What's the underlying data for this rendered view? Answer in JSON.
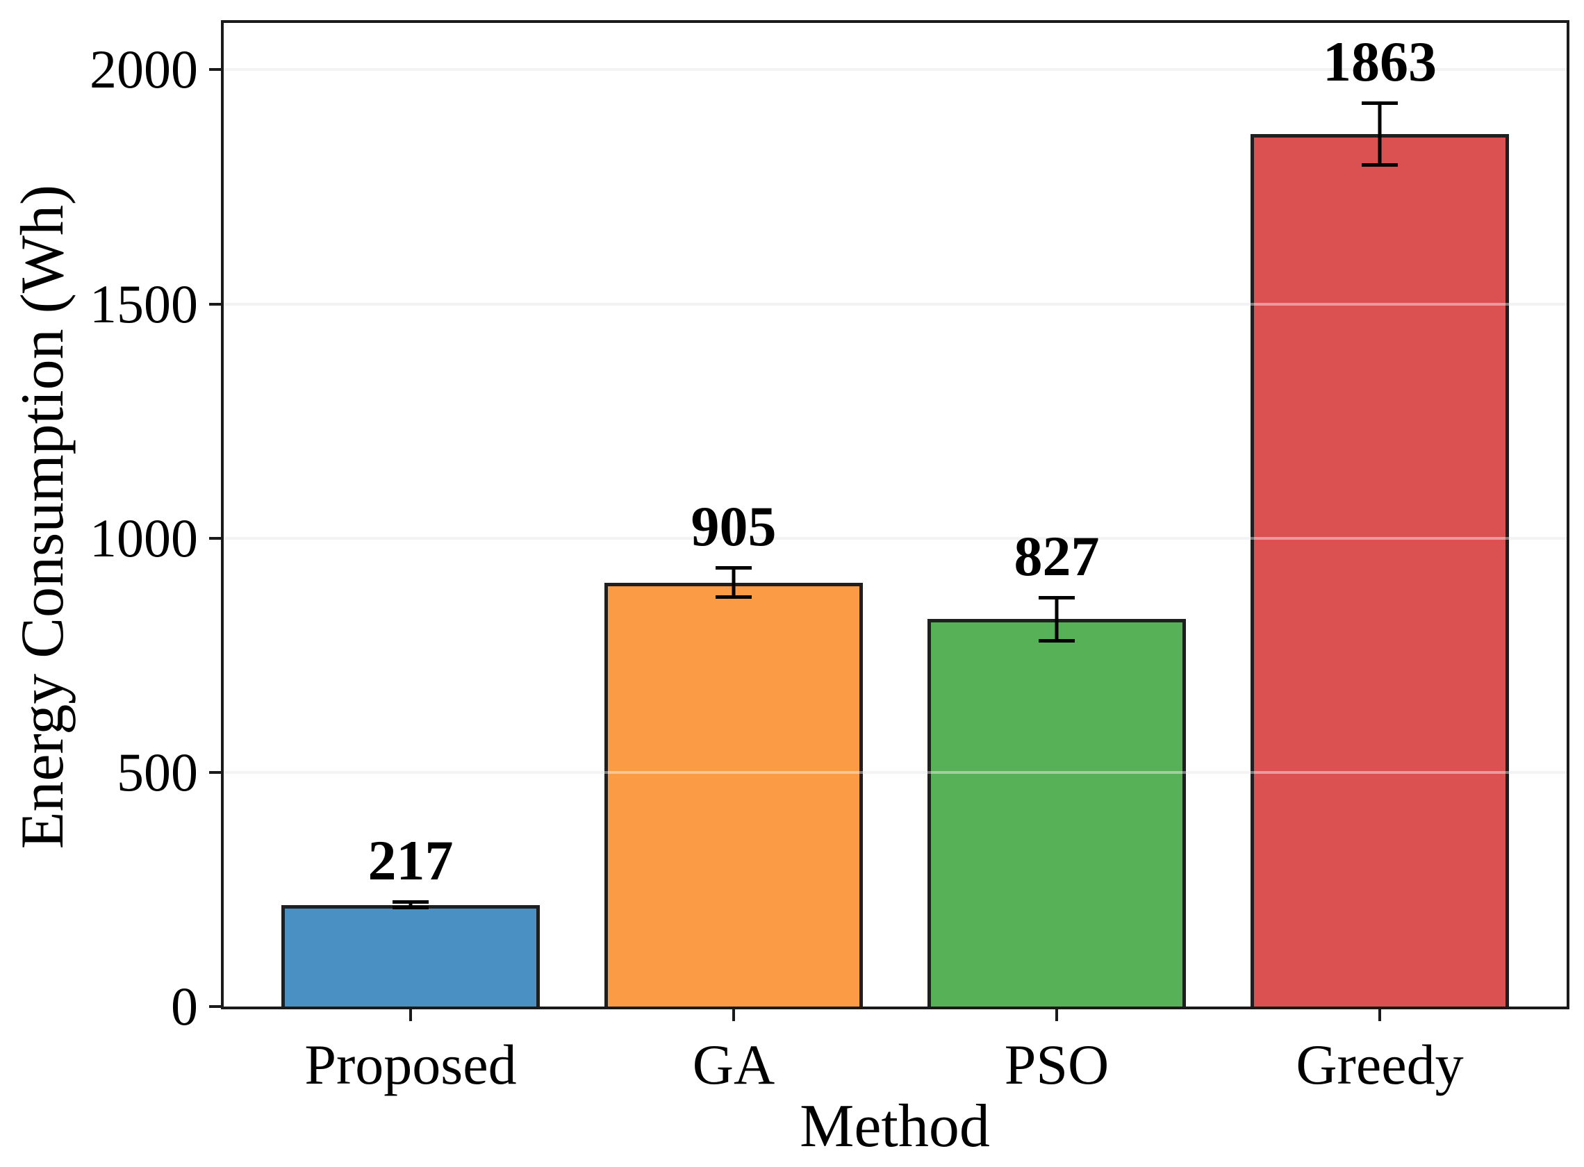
{
  "chart_data": {
    "type": "bar",
    "title": "",
    "xlabel": "Method",
    "ylabel": "Energy Consumption (Wh)",
    "categories": [
      "Proposed",
      "GA",
      "PSO",
      "Greedy"
    ],
    "values": [
      217,
      905,
      827,
      1863
    ],
    "errors": [
      10,
      35,
      50,
      70
    ],
    "value_labels": [
      "217",
      "905",
      "827",
      "1863"
    ],
    "bar_colors": [
      "#4B90C2",
      "#FC9B45",
      "#56B157",
      "#DB5152"
    ],
    "bar_edge_color": "#1F1F1F",
    "error_color": "#000000",
    "grid": "horizontal",
    "grid_color": "#EAEAEA",
    "yticks": [
      "0",
      "500",
      "1000",
      "1500",
      "2000"
    ],
    "ylim": [
      0,
      2100
    ],
    "legend": "none"
  }
}
